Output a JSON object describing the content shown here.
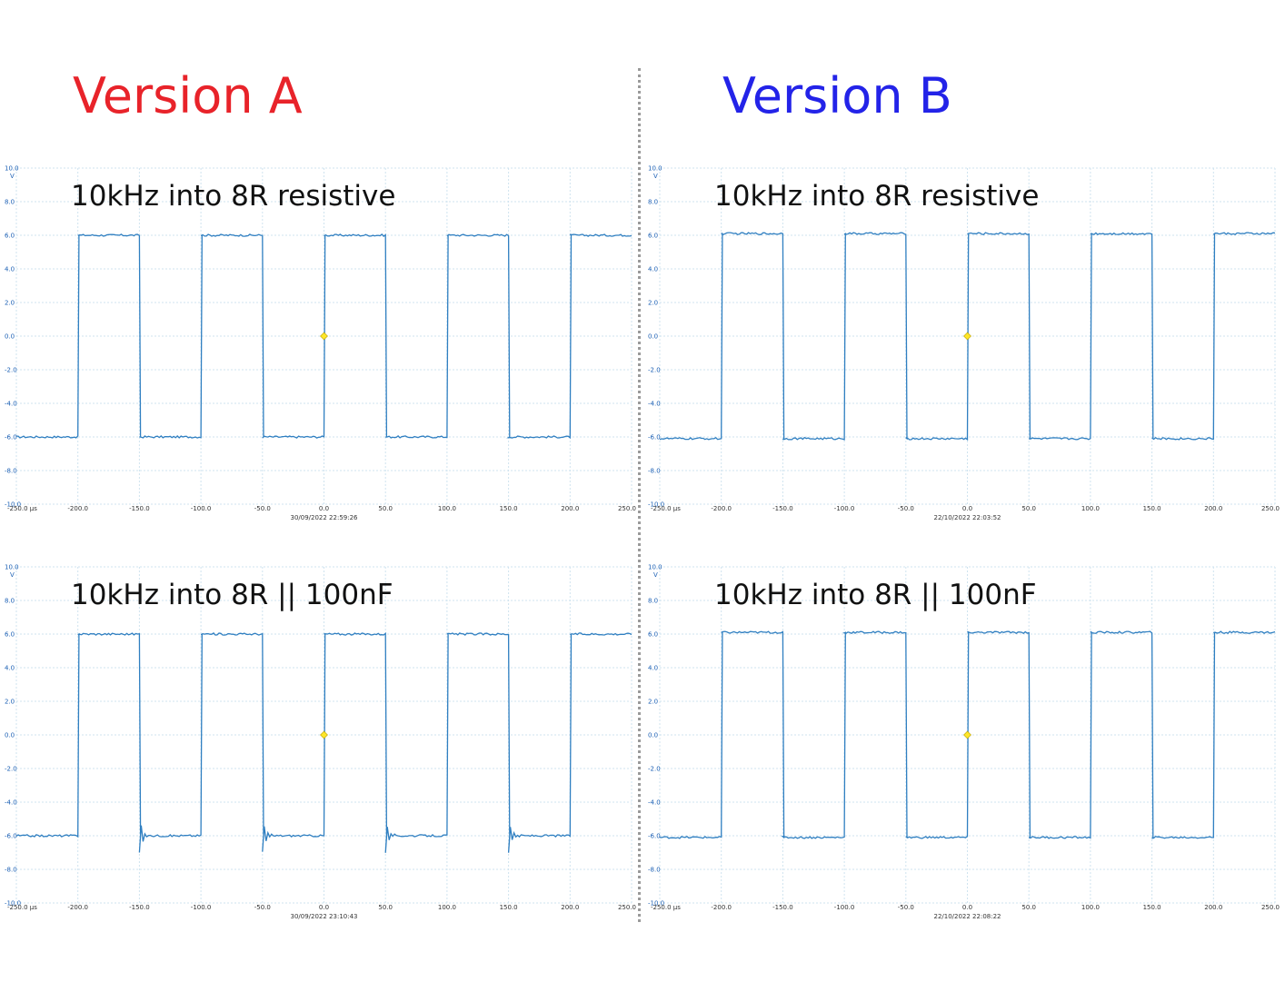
{
  "titles": {
    "version_a": "Version A",
    "version_b": "Version B",
    "color_a": "#e8232a",
    "color_b": "#2323e8"
  },
  "trace_color": "#2f7fc1",
  "trigger_marker_color": "#ffe629",
  "panels": [
    {
      "id": "a-res",
      "label": "10kHz into 8R resistive",
      "timestamp": "30/09/2022 22:59:26",
      "ringing": false
    },
    {
      "id": "b-res",
      "label": "10kHz into 8R resistive",
      "timestamp": "22/10/2022 22:03:52",
      "ringing": false
    },
    {
      "id": "a-cap",
      "label": "10kHz into 8R || 100nF",
      "timestamp": "30/09/2022 23:10:43",
      "ringing": true
    },
    {
      "id": "b-cap",
      "label": "10kHz into 8R || 100nF",
      "timestamp": "22/10/2022 22:08:22",
      "ringing": false
    }
  ],
  "chart_data": [
    {
      "type": "line",
      "panel": "Version A — 10kHz into 8R resistive",
      "x_unit": "µs",
      "y_unit": "V",
      "xlim": [
        -250,
        250
      ],
      "ylim": [
        -10,
        10
      ],
      "x_ticks": [
        "-250.0 µs",
        "-200.0",
        "-150.0",
        "-100.0",
        "-50.0",
        "0.0",
        "50.0",
        "100.0",
        "150.0",
        "200.0",
        "250.0"
      ],
      "y_ticks": [
        "10.0",
        "8.0",
        "6.0",
        "4.0",
        "2.0",
        "0.0",
        "-2.0",
        "-4.0",
        "-6.0",
        "-8.0",
        "-10.0"
      ],
      "grid": true,
      "waveform": "square",
      "frequency_khz": 10,
      "high_v": 6.0,
      "low_v": -6.0,
      "rising_edges_us": [
        -200,
        -100,
        0,
        100,
        200
      ],
      "falling_edges_us": [
        -150,
        -50,
        50,
        150
      ],
      "x": [
        -250,
        -200,
        -200,
        -150,
        -150,
        -100,
        -100,
        -50,
        -50,
        0,
        0,
        50,
        50,
        100,
        100,
        150,
        150,
        200,
        200,
        250
      ],
      "y": [
        -6.0,
        -6.0,
        6.0,
        6.0,
        -6.0,
        -6.0,
        6.0,
        6.0,
        -6.0,
        -6.0,
        6.0,
        6.0,
        -6.0,
        -6.0,
        6.0,
        6.0,
        -6.0,
        -6.0,
        6.0,
        6.0
      ],
      "trigger": {
        "x": 0,
        "y": 0
      }
    },
    {
      "type": "line",
      "panel": "Version B — 10kHz into 8R resistive",
      "x_unit": "µs",
      "y_unit": "V",
      "xlim": [
        -250,
        250
      ],
      "ylim": [
        -10,
        10
      ],
      "x_ticks": [
        "-250.0 µs",
        "-200.0",
        "-150.0",
        "-100.0",
        "-50.0",
        "0.0",
        "50.0",
        "100.0",
        "150.0",
        "200.0",
        "250.0"
      ],
      "y_ticks": [
        "10.0",
        "8.0",
        "6.0",
        "4.0",
        "2.0",
        "0.0",
        "-2.0",
        "-4.0",
        "-6.0",
        "-8.0",
        "-10.0"
      ],
      "grid": true,
      "waveform": "square",
      "frequency_khz": 10,
      "high_v": 6.1,
      "low_v": -6.1,
      "rising_edges_us": [
        -200,
        -100,
        0,
        100,
        200
      ],
      "falling_edges_us": [
        -150,
        -50,
        50,
        150
      ],
      "x": [
        -250,
        -200,
        -200,
        -150,
        -150,
        -100,
        -100,
        -50,
        -50,
        0,
        0,
        50,
        50,
        100,
        100,
        150,
        150,
        200,
        200,
        250
      ],
      "y": [
        -6.1,
        -6.1,
        6.1,
        6.1,
        -6.1,
        -6.1,
        6.1,
        6.1,
        -6.1,
        -6.1,
        6.1,
        6.1,
        -6.1,
        -6.1,
        6.1,
        6.1,
        -6.1,
        -6.1,
        6.1,
        6.1
      ],
      "trigger": {
        "x": 0,
        "y": 0
      }
    },
    {
      "type": "line",
      "panel": "Version A — 10kHz into 8R || 100nF",
      "x_unit": "µs",
      "y_unit": "V",
      "xlim": [
        -250,
        250
      ],
      "ylim": [
        -10,
        10
      ],
      "x_ticks": [
        "-250.0 µs",
        "-200.0",
        "-150.0",
        "-100.0",
        "-50.0",
        "0.0",
        "50.0",
        "100.0",
        "150.0",
        "200.0",
        "250.0"
      ],
      "y_ticks": [
        "10.0",
        "8.0",
        "6.0",
        "4.0",
        "2.0",
        "0.0",
        "-2.0",
        "-4.0",
        "-6.0",
        "-8.0",
        "-10.0"
      ],
      "grid": true,
      "waveform": "square",
      "frequency_khz": 10,
      "high_v": 6.0,
      "low_v": -6.0,
      "ringing_after_falling_edge": true,
      "ringing_peak_v": -7.0,
      "rising_edges_us": [
        -200,
        -100,
        0,
        100,
        200
      ],
      "falling_edges_us": [
        -150,
        -50,
        50,
        150
      ],
      "x": [
        -250,
        -200,
        -200,
        -150,
        -150,
        -100,
        -100,
        -50,
        -50,
        0,
        0,
        50,
        50,
        100,
        100,
        150,
        150,
        200,
        200,
        250
      ],
      "y": [
        -6.0,
        -6.0,
        6.0,
        6.0,
        -6.0,
        -6.0,
        6.0,
        6.0,
        -6.0,
        -6.0,
        6.0,
        6.0,
        -6.0,
        -6.0,
        6.0,
        6.0,
        -6.0,
        -6.0,
        6.0,
        6.0
      ],
      "trigger": {
        "x": 0,
        "y": 0
      }
    },
    {
      "type": "line",
      "panel": "Version B — 10kHz into 8R || 100nF",
      "x_unit": "µs",
      "y_unit": "V",
      "xlim": [
        -250,
        250
      ],
      "ylim": [
        -10,
        10
      ],
      "x_ticks": [
        "-250.0 µs",
        "-200.0",
        "-150.0",
        "-100.0",
        "-50.0",
        "0.0",
        "50.0",
        "100.0",
        "150.0",
        "200.0",
        "250.0"
      ],
      "y_ticks": [
        "10.0",
        "8.0",
        "6.0",
        "4.0",
        "2.0",
        "0.0",
        "-2.0",
        "-4.0",
        "-6.0",
        "-8.0",
        "-10.0"
      ],
      "grid": true,
      "waveform": "square",
      "frequency_khz": 10,
      "high_v": 6.1,
      "low_v": -6.1,
      "rising_edges_us": [
        -200,
        -100,
        0,
        100,
        200
      ],
      "falling_edges_us": [
        -150,
        -50,
        50,
        150
      ],
      "x": [
        -250,
        -200,
        -200,
        -150,
        -150,
        -100,
        -100,
        -50,
        -50,
        0,
        0,
        50,
        50,
        100,
        100,
        150,
        150,
        200,
        200,
        250
      ],
      "y": [
        -6.1,
        -6.1,
        6.1,
        6.1,
        -6.1,
        -6.1,
        6.1,
        6.1,
        -6.1,
        -6.1,
        6.1,
        6.1,
        -6.1,
        -6.1,
        6.1,
        6.1,
        -6.1,
        -6.1,
        6.1,
        6.1
      ],
      "trigger": {
        "x": 0,
        "y": 0
      }
    }
  ]
}
